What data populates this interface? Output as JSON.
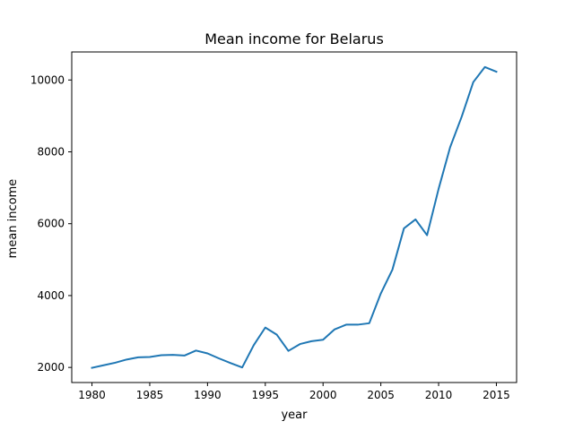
{
  "chart_data": {
    "type": "line",
    "title": "Mean income for Belarus",
    "xlabel": "year",
    "ylabel": "mean income",
    "xlim": [
      1978.25,
      2016.75
    ],
    "ylim": [
      1580,
      10780
    ],
    "xticks": [
      1980,
      1985,
      1990,
      1995,
      2000,
      2005,
      2010,
      2015
    ],
    "yticks": [
      2000,
      4000,
      6000,
      8000,
      10000
    ],
    "grid": false,
    "legend": "none",
    "series": [
      {
        "color": "#1f77b4",
        "x": [
          1980,
          1981,
          1982,
          1983,
          1984,
          1985,
          1986,
          1987,
          1988,
          1989,
          1990,
          1991,
          1992,
          1993,
          1994,
          1995,
          1996,
          1997,
          1998,
          1999,
          2000,
          2001,
          2002,
          2003,
          2004,
          2005,
          2006,
          2007,
          2008,
          2009,
          2010,
          2011,
          2012,
          2013,
          2014,
          2015
        ],
        "values": [
          1990,
          2060,
          2130,
          2220,
          2280,
          2290,
          2340,
          2350,
          2330,
          2470,
          2390,
          2250,
          2120,
          2000,
          2620,
          3110,
          2910,
          2460,
          2650,
          2730,
          2770,
          3060,
          3190,
          3190,
          3230,
          4060,
          4720,
          5870,
          6120,
          5680,
          6970,
          8130,
          8980,
          9940,
          10360,
          10230
        ]
      }
    ]
  }
}
